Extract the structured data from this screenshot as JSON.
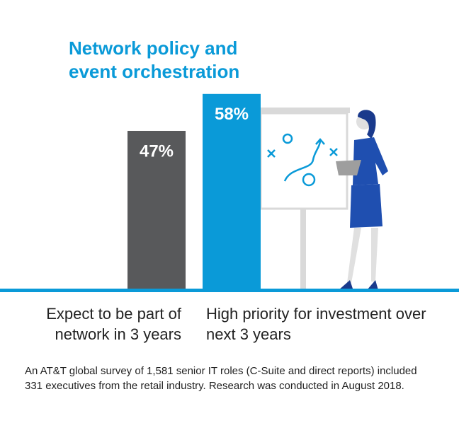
{
  "chart_data": {
    "type": "bar",
    "title": "Network policy and event orchestration",
    "categories": [
      "Expect to be part of network in 3 years",
      "High priority for investment over next 3 years"
    ],
    "values": [
      47,
      58
    ],
    "value_labels": [
      "47%",
      "58%"
    ],
    "colors": [
      "#58595b",
      "#0a9ad8"
    ],
    "footnote": "An AT&T global survey of 1,581 senior IT roles (C-Suite and direct reports) included 331 executives from the retail industry. Research was conducted in August 2018."
  }
}
